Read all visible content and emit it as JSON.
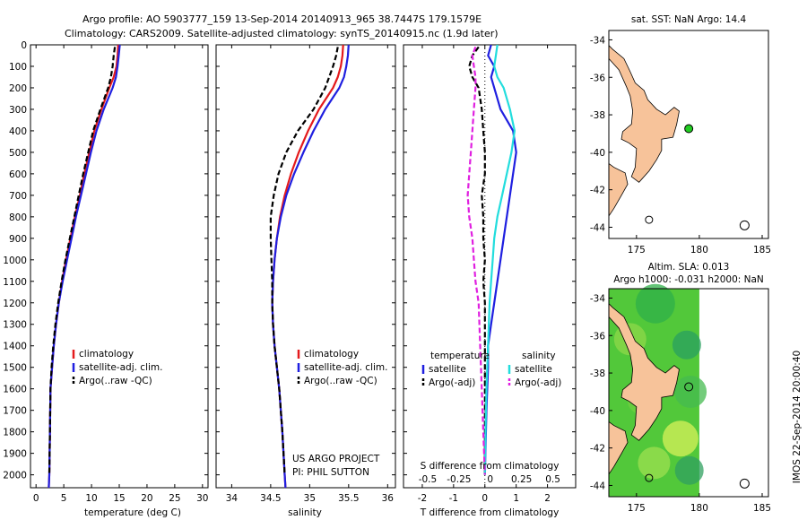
{
  "header": {
    "line1": "Argo profile: AO 5903777_159 13-Sep-2014 20140913_965 38.7447S 179.1579E",
    "line2": "Climatology: CARS2009. Satellite-adjusted climatology: synTS_20140915.nc (1.9d later)"
  },
  "colors": {
    "climatology": "#e41a1c",
    "satellite": "#1f1fe0",
    "argo": "#000000",
    "salinity_satellite": "#22dddd",
    "salinity_argo": "#e020e0",
    "land": "#f7c39a",
    "marker": "#22cc22"
  },
  "credits": {
    "project": "US ARGO PROJECT",
    "pi": "PI: PHIL SUTTON",
    "imos": "IMOS 22-Sep-2014 20:00:40"
  },
  "chart_data": [
    {
      "type": "line",
      "name": "temperature-panel",
      "xlabel": "temperature (deg C)",
      "xlim": [
        -1,
        31
      ],
      "ylim": [
        2060,
        0
      ],
      "xticks": [
        0,
        5,
        10,
        15,
        20,
        25,
        30
      ],
      "yticks": [
        0,
        100,
        200,
        300,
        400,
        500,
        600,
        700,
        800,
        900,
        1000,
        1100,
        1200,
        1300,
        1400,
        1500,
        1600,
        1700,
        1800,
        1900,
        2000
      ],
      "legend": [
        "climatology",
        "satellite-adj. clim.",
        "Argo(..raw -QC)"
      ],
      "series": [
        {
          "name": "climatology",
          "color": "#e41a1c",
          "dash": "",
          "x": [
            14.8,
            14.7,
            14.5,
            14.0,
            13.2,
            11.8,
            10.5,
            9.6,
            8.7,
            7.9,
            7.0,
            6.2,
            5.4,
            4.7,
            4.1,
            3.6,
            3.2,
            2.9,
            2.6,
            2.5,
            2.4,
            2.3
          ],
          "y": [
            0,
            50,
            100,
            150,
            200,
            300,
            400,
            500,
            600,
            700,
            800,
            900,
            1000,
            1100,
            1200,
            1300,
            1400,
            1500,
            1600,
            1800,
            2000,
            2060
          ]
        },
        {
          "name": "satellite-adj. clim.",
          "color": "#1f1fe0",
          "dash": "",
          "x": [
            15.1,
            14.9,
            14.7,
            14.4,
            13.8,
            12.2,
            10.9,
            9.9,
            9.0,
            8.1,
            7.2,
            6.4,
            5.6,
            4.8,
            4.1,
            3.6,
            3.2,
            2.9,
            2.6,
            2.5,
            2.4,
            2.3
          ],
          "y": [
            0,
            50,
            100,
            150,
            200,
            300,
            400,
            500,
            600,
            700,
            800,
            900,
            1000,
            1100,
            1200,
            1300,
            1400,
            1500,
            1600,
            1800,
            2000,
            2060
          ]
        },
        {
          "name": "Argo(..raw -QC)",
          "color": "#000000",
          "dash": "6 3",
          "x": [
            14.2,
            14.0,
            13.8,
            13.5,
            13.0,
            11.6,
            10.3,
            9.4,
            8.5,
            7.7,
            6.9,
            6.1,
            5.3,
            4.6,
            4.0,
            3.5,
            3.1,
            2.8,
            2.6,
            2.5,
            2.4
          ],
          "y": [
            10,
            50,
            100,
            150,
            200,
            300,
            400,
            500,
            600,
            700,
            800,
            900,
            1000,
            1100,
            1200,
            1300,
            1400,
            1500,
            1600,
            1800,
            2000
          ]
        }
      ]
    },
    {
      "type": "line",
      "name": "salinity-panel",
      "xlabel": "salinity",
      "xlim": [
        33.8,
        36.1
      ],
      "ylim": [
        2060,
        0
      ],
      "xticks": [
        34,
        34.5,
        35,
        35.5,
        36
      ],
      "xticklabels": [
        "34",
        "34.5",
        "35",
        "35.5",
        "36"
      ],
      "legend": [
        "climatology",
        "satellite-adj. clim.",
        "Argo(..raw -QC)"
      ],
      "series": [
        {
          "name": "climatology",
          "color": "#e41a1c",
          "dash": "",
          "x": [
            35.43,
            35.42,
            35.4,
            35.36,
            35.3,
            35.12,
            34.98,
            34.86,
            34.76,
            34.68,
            34.62,
            34.58,
            34.55,
            34.53,
            34.52,
            34.53,
            34.55,
            34.58,
            34.61,
            34.65,
            34.68,
            34.69
          ],
          "y": [
            0,
            50,
            100,
            150,
            200,
            300,
            400,
            500,
            600,
            700,
            800,
            900,
            1000,
            1100,
            1200,
            1300,
            1400,
            1500,
            1600,
            1800,
            2000,
            2060
          ]
        },
        {
          "name": "satellite-adj. clim.",
          "color": "#1f1fe0",
          "dash": "",
          "x": [
            35.5,
            35.49,
            35.47,
            35.44,
            35.38,
            35.2,
            35.05,
            34.92,
            34.8,
            34.7,
            34.63,
            34.58,
            34.55,
            34.53,
            34.52,
            34.53,
            34.55,
            34.58,
            34.61,
            34.65,
            34.68,
            34.69
          ],
          "y": [
            0,
            50,
            100,
            150,
            200,
            300,
            400,
            500,
            600,
            700,
            800,
            900,
            1000,
            1100,
            1200,
            1300,
            1400,
            1500,
            1600,
            1800,
            2000,
            2060
          ]
        },
        {
          "name": "Argo(..raw -QC)",
          "color": "#000000",
          "dash": "6 3",
          "x": [
            35.36,
            35.34,
            35.3,
            35.25,
            35.2,
            35.05,
            34.85,
            34.7,
            34.6,
            34.54,
            34.5,
            34.5,
            34.51,
            34.52,
            34.52,
            34.53,
            34.55,
            34.58,
            34.61,
            34.65,
            34.68
          ],
          "y": [
            10,
            50,
            100,
            150,
            200,
            300,
            400,
            500,
            600,
            700,
            800,
            900,
            1000,
            1100,
            1200,
            1300,
            1400,
            1500,
            1600,
            1800,
            2000
          ]
        }
      ]
    },
    {
      "type": "line",
      "name": "difference-panel",
      "xlabel": "T difference from climatology",
      "xlabel2": "S difference from climatology",
      "xlim": [
        -2.6,
        2.9
      ],
      "ylim": [
        2060,
        0
      ],
      "xticks": [
        -2,
        -1,
        0,
        1,
        2
      ],
      "xticklabels": [
        "-2",
        "-1",
        "0",
        "1",
        "2"
      ],
      "top_ticklabels": [
        "-0.5",
        "-0.25",
        "0",
        "0.25",
        "0.5"
      ],
      "legend_titles": [
        "temperature",
        "salinity"
      ],
      "legend": [
        "satellite",
        "Argo(-adj)",
        "satellite",
        "Argo(-adj)"
      ],
      "series": [
        {
          "name": "temperature satellite",
          "color": "#1f1fe0",
          "dash": "",
          "x": [
            0.2,
            0.1,
            0.3,
            0.2,
            0.3,
            0.5,
            0.9,
            1.0,
            0.9,
            0.8,
            0.7,
            0.6,
            0.5,
            0.4,
            0.3,
            0.2,
            0.1,
            0.1,
            0.05,
            0.0
          ],
          "y": [
            0,
            50,
            100,
            150,
            200,
            300,
            400,
            500,
            600,
            700,
            800,
            900,
            1000,
            1100,
            1200,
            1300,
            1400,
            1500,
            1700,
            2000
          ]
        },
        {
          "name": "temperature Argo(-adj)",
          "color": "#000000",
          "dash": "6 3",
          "x": [
            -0.2,
            -0.4,
            -0.5,
            -0.4,
            -0.2,
            -0.1,
            -0.05,
            0.0,
            0.0,
            -0.1,
            -0.05,
            -0.05,
            0.0,
            -0.05,
            0.0,
            0.0,
            0.0,
            0.0,
            0.0
          ],
          "y": [
            10,
            50,
            100,
            150,
            200,
            300,
            400,
            500,
            600,
            700,
            800,
            900,
            1000,
            1100,
            1200,
            1400,
            1600,
            1800,
            2000
          ]
        },
        {
          "name": "salinity satellite",
          "color": "#22dddd",
          "dash": "",
          "x": [
            0.4,
            0.35,
            0.3,
            0.4,
            0.6,
            0.8,
            0.95,
            0.85,
            0.7,
            0.55,
            0.4,
            0.3,
            0.25,
            0.2,
            0.15,
            0.1,
            0.05,
            0.02,
            0.0
          ],
          "y": [
            0,
            50,
            100,
            150,
            200,
            300,
            400,
            500,
            600,
            700,
            800,
            900,
            1000,
            1100,
            1200,
            1400,
            1600,
            1800,
            2000
          ]
        },
        {
          "name": "salinity Argo(-adj)",
          "color": "#e020e0",
          "dash": "6 3",
          "x": [
            -0.3,
            -0.4,
            -0.35,
            -0.3,
            -0.3,
            -0.35,
            -0.4,
            -0.45,
            -0.5,
            -0.55,
            -0.5,
            -0.4,
            -0.35,
            -0.3,
            -0.2,
            -0.15,
            -0.1,
            -0.05,
            0.0
          ],
          "y": [
            10,
            50,
            100,
            150,
            200,
            300,
            400,
            500,
            600,
            700,
            800,
            900,
            1000,
            1100,
            1200,
            1400,
            1600,
            1800,
            2000
          ]
        }
      ]
    },
    {
      "type": "map",
      "name": "sst-map",
      "title": "sat. SST: NaN Argo: 14.4",
      "xlim": [
        172.8,
        185.5
      ],
      "ylim": [
        -44.6,
        -33.5
      ],
      "xticks": [
        175,
        180,
        185
      ],
      "yticks": [
        -34,
        -36,
        -38,
        -40,
        -42,
        -44
      ],
      "argo_position": [
        179.16,
        -38.74
      ]
    },
    {
      "type": "heatmap",
      "name": "sla-map",
      "title_line1": "Altim. SLA: 0.013",
      "title_line2": "Argo h1000: -0.031 h2000: NaN",
      "xlim": [
        172.8,
        185.5
      ],
      "ylim": [
        -44.6,
        -33.5
      ],
      "xticks": [
        175,
        180,
        185
      ],
      "yticks": [
        -34,
        -36,
        -38,
        -40,
        -42,
        -44
      ]
    }
  ]
}
